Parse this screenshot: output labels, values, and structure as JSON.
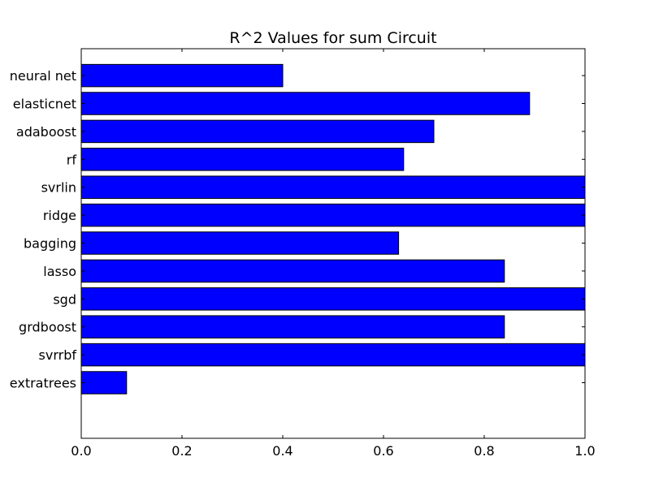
{
  "chart_data": {
    "type": "bar",
    "orientation": "horizontal",
    "title": "R^2 Values for sum Circuit",
    "xlabel": "",
    "ylabel": "",
    "categories": [
      "extratrees",
      "svrrbf",
      "grdboost",
      "sgd",
      "lasso",
      "bagging",
      "ridge",
      "svrlin",
      "rf",
      "adaboost",
      "elasticnet",
      "neural net"
    ],
    "values": [
      0.09,
      1.0,
      0.84,
      1.0,
      0.84,
      0.63,
      1.0,
      1.0,
      0.64,
      0.7,
      0.89,
      0.4
    ],
    "xlim": [
      0.0,
      1.0
    ],
    "xticks": [
      "0.0",
      "0.2",
      "0.4",
      "0.6",
      "0.8",
      "1.0"
    ],
    "bar_color": "#0000ff",
    "edge_color": "#000000",
    "grid": false,
    "legend": "none"
  }
}
